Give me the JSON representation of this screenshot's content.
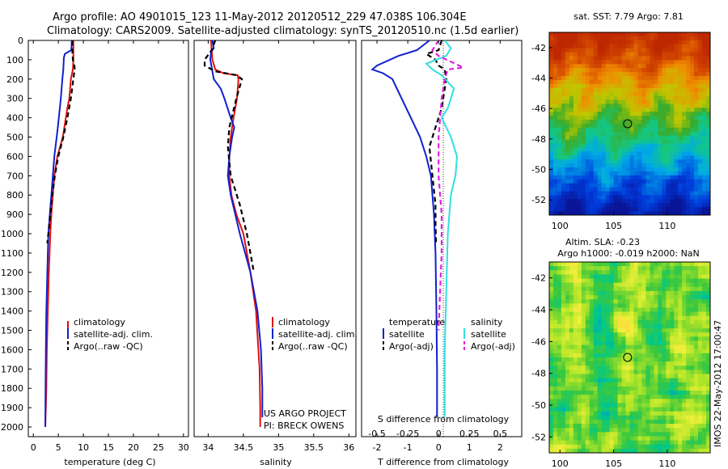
{
  "title": {
    "line1": "Argo profile: AO 4901015_123 11-May-2012 20120512_229 47.038S 106.304E",
    "line2": "Climatology: CARS2009. Satellite-adjusted climatology: synTS_20120510.nc (1.5d earlier)"
  },
  "colors": {
    "climatology": "#e01010",
    "satellite": "#1020d0",
    "argo": "#000000",
    "sal_satellite": "#30e0e0",
    "sal_argo": "#e020e0"
  },
  "chart_data": [
    {
      "type": "line",
      "xlabel": "temperature (deg C)",
      "ylabel": "",
      "xlim": [
        -1,
        31
      ],
      "ylim": [
        2050,
        0
      ],
      "xticks": [
        "0",
        "5",
        "10",
        "15",
        "20",
        "25",
        "30"
      ],
      "yticks": [
        "0",
        "100",
        "200",
        "300",
        "400",
        "500",
        "600",
        "700",
        "800",
        "900",
        "1000",
        "1100",
        "1200",
        "1300",
        "1400",
        "1500",
        "1600",
        "1700",
        "1800",
        "1900",
        "2000"
      ],
      "legend": [
        "climatology",
        "satellite-adj. clim.",
        "Argo(..raw -QC)"
      ],
      "series": [
        {
          "name": "climatology",
          "style": "solid",
          "color": "#e01010",
          "x": [
            8.0,
            8.0,
            8.0,
            7.9,
            7.5,
            7.2,
            6.8,
            6.5,
            5.9,
            4.8,
            4.2,
            3.9,
            3.6,
            3.4,
            3.1,
            2.9,
            2.7,
            2.6,
            2.5,
            2.45,
            2.4
          ],
          "y": [
            0,
            50,
            100,
            150,
            200,
            300,
            350,
            400,
            500,
            600,
            700,
            800,
            900,
            1000,
            1200,
            1400,
            1600,
            1800,
            1900,
            1950,
            2000
          ]
        },
        {
          "name": "satellite-adj. clim.",
          "style": "solid",
          "color": "#1020d0",
          "x": [
            7.7,
            7.6,
            6.3,
            6.1,
            6.0,
            5.8,
            5.5,
            4.9,
            4.2,
            3.9,
            3.6,
            3.3,
            3.0,
            2.8,
            2.6,
            2.5,
            2.45,
            2.4
          ],
          "y": [
            0,
            50,
            70,
            90,
            150,
            200,
            300,
            450,
            600,
            700,
            800,
            900,
            1000,
            1200,
            1400,
            1600,
            1800,
            2000
          ]
        },
        {
          "name": "Argo(..raw -QC)",
          "style": "dash",
          "color": "#000000",
          "x": [
            7.8,
            7.8,
            7.9,
            8.2,
            8.3,
            8.1,
            7.5,
            6.8,
            6.0,
            5.0,
            4.3,
            3.8,
            3.4,
            3.2,
            3.0,
            2.8
          ],
          "y": [
            0,
            60,
            100,
            130,
            150,
            180,
            300,
            400,
            500,
            600,
            700,
            800,
            900,
            950,
            1000,
            1050
          ]
        }
      ]
    },
    {
      "type": "line",
      "xlabel": "salinity",
      "xlim": [
        33.8,
        36.1
      ],
      "ylim": [
        2050,
        0
      ],
      "xticks": [
        "34",
        "34.5",
        "35",
        "35.5",
        "36"
      ],
      "legend": [
        "climatology",
        "satellite-adj. clim.",
        "Argo(..raw -QC)"
      ],
      "series": [
        {
          "name": "climatology",
          "style": "solid",
          "color": "#e01010",
          "x": [
            34.04,
            34.05,
            34.06,
            34.1,
            34.22,
            34.42,
            34.43,
            34.41,
            34.36,
            34.32,
            34.3,
            34.3,
            34.33,
            34.4,
            34.5,
            34.6,
            34.68,
            34.73,
            34.74,
            34.74
          ],
          "y": [
            0,
            50,
            100,
            150,
            170,
            180,
            200,
            300,
            400,
            500,
            600,
            700,
            800,
            900,
            1000,
            1200,
            1400,
            1700,
            1900,
            2000
          ]
        },
        {
          "name": "satellite-adj. clim.",
          "style": "solid",
          "color": "#1020d0",
          "x": [
            34.06,
            34.08,
            34.04,
            34.03,
            34.08,
            34.18,
            34.23,
            34.32,
            34.37,
            34.34,
            34.3,
            34.28,
            34.32,
            34.45,
            34.6,
            34.7,
            34.75,
            34.77,
            34.77
          ],
          "y": [
            0,
            40,
            60,
            100,
            200,
            250,
            300,
            400,
            450,
            500,
            600,
            700,
            800,
            1000,
            1200,
            1400,
            1600,
            1800,
            1950
          ]
        },
        {
          "name": "Argo(..raw -QC)",
          "style": "dash",
          "color": "#000000",
          "x": [
            34.1,
            34.05,
            33.95,
            33.95,
            34.1,
            34.25,
            34.4,
            34.48,
            34.4,
            34.3,
            34.28,
            34.32,
            34.45,
            34.55,
            34.65
          ],
          "y": [
            0,
            50,
            100,
            130,
            160,
            170,
            180,
            200,
            300,
            450,
            550,
            700,
            850,
            1000,
            1200
          ]
        }
      ],
      "annotation": [
        "US ARGO PROJECT",
        "PI: BRECK OWENS"
      ]
    },
    {
      "type": "line",
      "xlabel": "T difference from climatology",
      "xlabel_top": "S difference from climatology",
      "xlim": [
        -2.5,
        2.7
      ],
      "ylim": [
        2050,
        0
      ],
      "xticks": [
        "-2",
        "-1",
        "0",
        "1",
        "2"
      ],
      "xticks_top": [
        "-0.5",
        "-0.25",
        "0",
        "0.25",
        "0.5"
      ],
      "legend_temperature": {
        "header": "temperature",
        "entries": [
          "satellite",
          "Argo(-adj)"
        ]
      },
      "legend_salinity": {
        "header": "salinity",
        "entries": [
          "satellite",
          "Argo(-adj)"
        ]
      },
      "series": [
        {
          "name": "satellite",
          "group": "temperature",
          "style": "solid",
          "color": "#1020d0",
          "x": [
            -0.3,
            -0.7,
            -1.3,
            -2.0,
            -2.15,
            -1.8,
            -1.5,
            -1.2,
            -0.9,
            -0.6,
            -0.4,
            -0.25,
            -0.15,
            -0.1,
            -0.07,
            -0.05,
            -0.05
          ],
          "y": [
            0,
            50,
            80,
            130,
            150,
            170,
            200,
            300,
            400,
            500,
            600,
            700,
            900,
            1100,
            1400,
            1700,
            1950
          ]
        },
        {
          "name": "Argo(-adj)",
          "group": "temperature",
          "style": "dash",
          "color": "#000000",
          "x": [
            0.1,
            0.0,
            -0.4,
            -0.1,
            0.0,
            0.2,
            0.25,
            0.1,
            -0.1,
            -0.3,
            -0.2,
            -0.1,
            -0.1,
            -0.08
          ],
          "y": [
            0,
            50,
            70,
            100,
            130,
            150,
            200,
            350,
            450,
            550,
            700,
            850,
            950,
            1050
          ]
        },
        {
          "name": "satellite",
          "group": "salinity",
          "style": "solid",
          "color": "#30e0e0",
          "x": [
            0.2,
            0.4,
            0.25,
            -0.4,
            -0.2,
            0.1,
            0.5,
            0.3,
            0.1,
            0.4,
            0.6,
            0.55,
            0.4,
            0.3,
            0.25,
            0.2,
            0.2
          ],
          "y": [
            0,
            40,
            80,
            120,
            150,
            180,
            250,
            350,
            400,
            500,
            600,
            700,
            800,
            1000,
            1300,
            1600,
            1950
          ]
        },
        {
          "name": "Argo(-adj)",
          "group": "salinity",
          "style": "dash",
          "color": "#e020e0",
          "x": [
            0.0,
            -0.2,
            0.0,
            0.4,
            0.8,
            0.3,
            0.2,
            0.1,
            0.0,
            0.0,
            0.1,
            0.1,
            0.05,
            0.0
          ],
          "y": [
            0,
            50,
            80,
            110,
            140,
            150,
            200,
            300,
            500,
            700,
            900,
            1100,
            1300,
            1500
          ]
        }
      ]
    },
    {
      "type": "heatmap",
      "title": "sat. SST: 7.79 Argo: 7.81",
      "xlim": [
        99,
        114
      ],
      "ylim": [
        -53,
        -41
      ],
      "xticks": [
        "100",
        "105",
        "110"
      ],
      "yticks": [
        "-42",
        "-44",
        "-46",
        "-48",
        "-50",
        "-52"
      ],
      "marker": {
        "x": 106.3,
        "y": -47.0
      }
    },
    {
      "type": "heatmap",
      "title_line1": "Altim. SLA: -0.23",
      "title_line2": "Argo h1000: -0.019 h2000: NaN",
      "xlim": [
        99,
        114
      ],
      "ylim": [
        -53,
        -41
      ],
      "xticks": [
        "100",
        "105",
        "110"
      ],
      "yticks": [
        "-42",
        "-44",
        "-46",
        "-48",
        "-50",
        "-52"
      ],
      "marker": {
        "x": 106.3,
        "y": -47.0
      }
    }
  ],
  "side_stamp": "IMOS 22-May-2012 17:00:47"
}
